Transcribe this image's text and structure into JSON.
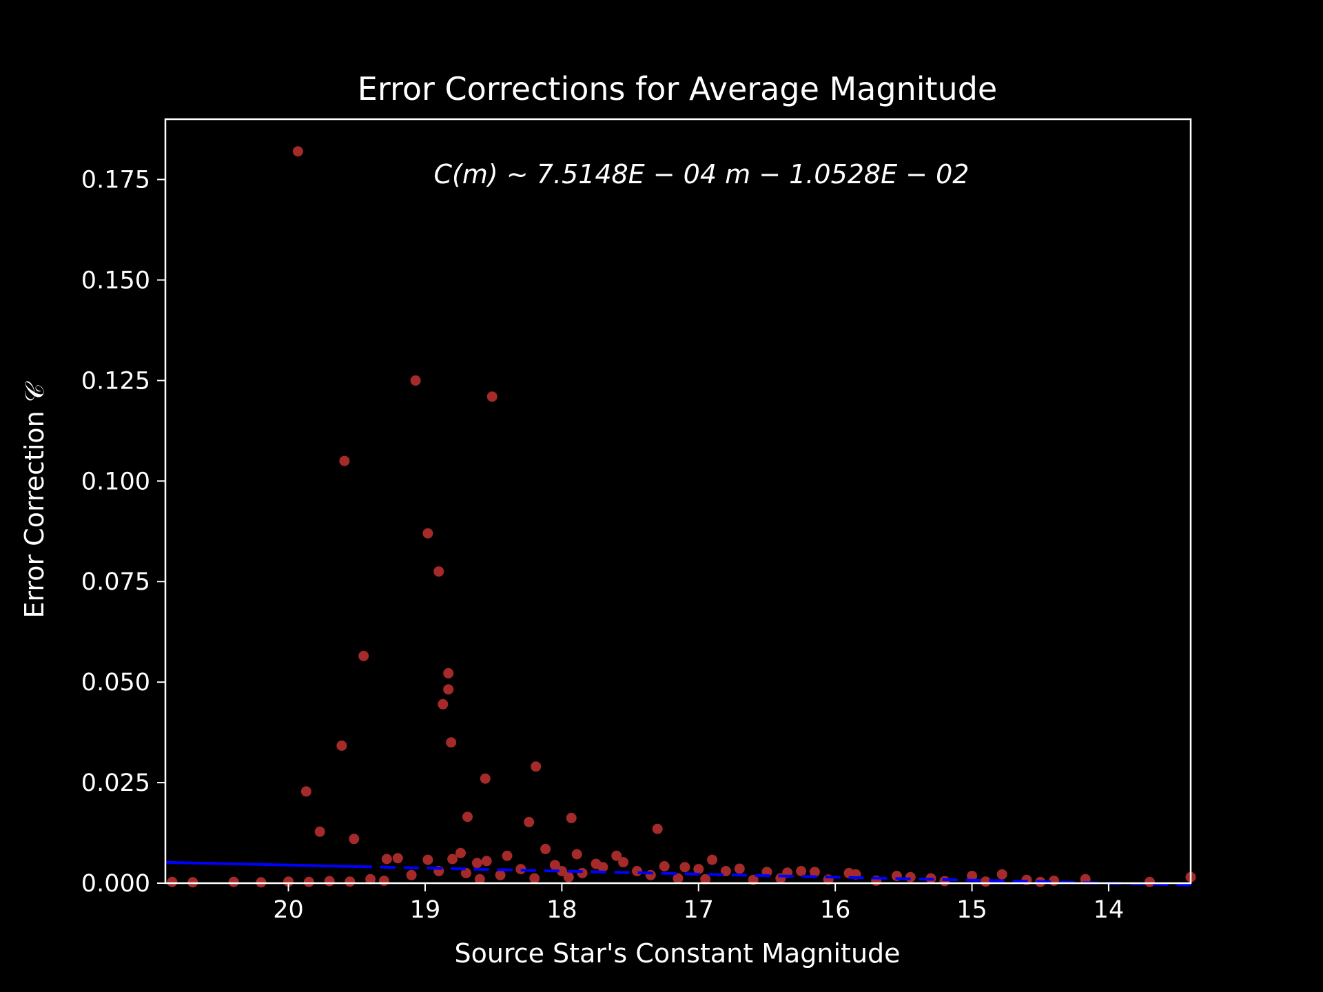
{
  "chart_data": {
    "type": "scatter",
    "title": "Error Corrections for Average Magnitude",
    "xlabel": "Source Star's Constant Magnitude",
    "ylabel": "Error Correction 𝒞",
    "annotation": "C(m) ~ 7.5148E − 04 m − 1.0528E − 02",
    "x_inverted": true,
    "xlim": [
      20.9,
      13.4
    ],
    "ylim": [
      0,
      0.19
    ],
    "x_ticks": [
      20,
      19,
      18,
      17,
      16,
      15,
      14
    ],
    "y_ticks": [
      0.0,
      0.025,
      0.05,
      0.075,
      0.1,
      0.125,
      0.15,
      0.175
    ],
    "x_tick_labels": [
      "20",
      "19",
      "18",
      "17",
      "16",
      "15",
      "14"
    ],
    "y_tick_labels": [
      "0.000",
      "0.025",
      "0.050",
      "0.075",
      "0.100",
      "0.125",
      "0.150",
      "0.175"
    ],
    "grid": false,
    "colors": {
      "points": "#a52a2a",
      "fit_line": "#0000ff",
      "background": "#000000",
      "foreground": "#ffffff"
    },
    "fit": {
      "slope": 0.00075148,
      "intercept": -0.010528,
      "solid_x_range": [
        20.9,
        19.5
      ],
      "dashed_x_range": [
        19.5,
        13.4
      ]
    },
    "points": [
      {
        "x": 19.93,
        "y": 0.182
      },
      {
        "x": 19.07,
        "y": 0.125
      },
      {
        "x": 18.51,
        "y": 0.121
      },
      {
        "x": 19.59,
        "y": 0.105
      },
      {
        "x": 18.98,
        "y": 0.087
      },
      {
        "x": 18.9,
        "y": 0.0775
      },
      {
        "x": 19.45,
        "y": 0.0565
      },
      {
        "x": 18.83,
        "y": 0.0522
      },
      {
        "x": 18.83,
        "y": 0.0482
      },
      {
        "x": 18.87,
        "y": 0.0445
      },
      {
        "x": 19.61,
        "y": 0.0342
      },
      {
        "x": 18.81,
        "y": 0.035
      },
      {
        "x": 18.19,
        "y": 0.029
      },
      {
        "x": 18.56,
        "y": 0.026
      },
      {
        "x": 19.87,
        "y": 0.0228
      },
      {
        "x": 18.69,
        "y": 0.0165
      },
      {
        "x": 17.93,
        "y": 0.0162
      },
      {
        "x": 18.24,
        "y": 0.0152
      },
      {
        "x": 17.3,
        "y": 0.0135
      },
      {
        "x": 19.77,
        "y": 0.0128
      },
      {
        "x": 19.52,
        "y": 0.011
      },
      {
        "x": 18.12,
        "y": 0.0085
      },
      {
        "x": 18.74,
        "y": 0.0075
      },
      {
        "x": 17.89,
        "y": 0.0072
      },
      {
        "x": 18.4,
        "y": 0.0068
      },
      {
        "x": 17.6,
        "y": 0.0068
      },
      {
        "x": 16.9,
        "y": 0.0058
      },
      {
        "x": 19.2,
        "y": 0.0062
      },
      {
        "x": 19.28,
        "y": 0.006
      },
      {
        "x": 18.98,
        "y": 0.0058
      },
      {
        "x": 18.8,
        "y": 0.006
      },
      {
        "x": 18.55,
        "y": 0.0055
      },
      {
        "x": 18.62,
        "y": 0.005
      },
      {
        "x": 18.05,
        "y": 0.0045
      },
      {
        "x": 17.75,
        "y": 0.0048
      },
      {
        "x": 17.55,
        "y": 0.0052
      },
      {
        "x": 17.25,
        "y": 0.0042
      },
      {
        "x": 17.1,
        "y": 0.004
      },
      {
        "x": 17.0,
        "y": 0.0035
      },
      {
        "x": 16.8,
        "y": 0.003
      },
      {
        "x": 16.7,
        "y": 0.0036
      },
      {
        "x": 16.5,
        "y": 0.0028
      },
      {
        "x": 16.35,
        "y": 0.0026
      },
      {
        "x": 16.25,
        "y": 0.003
      },
      {
        "x": 16.15,
        "y": 0.0028
      },
      {
        "x": 15.9,
        "y": 0.0025
      },
      {
        "x": 15.85,
        "y": 0.0022
      },
      {
        "x": 15.55,
        "y": 0.0018
      },
      {
        "x": 15.45,
        "y": 0.0015
      },
      {
        "x": 15.3,
        "y": 0.0012
      },
      {
        "x": 15.0,
        "y": 0.0018
      },
      {
        "x": 14.78,
        "y": 0.0022
      },
      {
        "x": 14.6,
        "y": 0.0008
      },
      {
        "x": 14.4,
        "y": 0.0006
      },
      {
        "x": 14.17,
        "y": 0.001
      },
      {
        "x": 13.7,
        "y": 0.0003
      },
      {
        "x": 13.4,
        "y": 0.0015
      },
      {
        "x": 18.3,
        "y": 0.0035
      },
      {
        "x": 18.0,
        "y": 0.003
      },
      {
        "x": 17.85,
        "y": 0.0025
      },
      {
        "x": 17.7,
        "y": 0.004
      },
      {
        "x": 17.45,
        "y": 0.003
      },
      {
        "x": 17.35,
        "y": 0.002
      },
      {
        "x": 18.45,
        "y": 0.002
      },
      {
        "x": 18.7,
        "y": 0.0025
      },
      {
        "x": 18.9,
        "y": 0.003
      },
      {
        "x": 19.1,
        "y": 0.002
      },
      {
        "x": 19.4,
        "y": 0.001
      },
      {
        "x": 19.7,
        "y": 0.0005
      },
      {
        "x": 20.0,
        "y": 0.0004
      },
      {
        "x": 20.4,
        "y": 0.0003
      },
      {
        "x": 20.7,
        "y": 0.0002
      },
      {
        "x": 20.85,
        "y": 0.0003
      },
      {
        "x": 20.2,
        "y": 0.0002
      },
      {
        "x": 19.85,
        "y": 0.0003
      },
      {
        "x": 19.55,
        "y": 0.0004
      },
      {
        "x": 19.3,
        "y": 0.0006
      },
      {
        "x": 18.6,
        "y": 0.001
      },
      {
        "x": 18.2,
        "y": 0.0012
      },
      {
        "x": 17.95,
        "y": 0.0015
      },
      {
        "x": 17.15,
        "y": 0.0012
      },
      {
        "x": 16.95,
        "y": 0.001
      },
      {
        "x": 16.6,
        "y": 0.0008
      },
      {
        "x": 16.4,
        "y": 0.0012
      },
      {
        "x": 16.05,
        "y": 0.0009
      },
      {
        "x": 15.7,
        "y": 0.0006
      },
      {
        "x": 15.2,
        "y": 0.0005
      },
      {
        "x": 14.9,
        "y": 0.0004
      },
      {
        "x": 14.5,
        "y": 0.0003
      }
    ]
  }
}
